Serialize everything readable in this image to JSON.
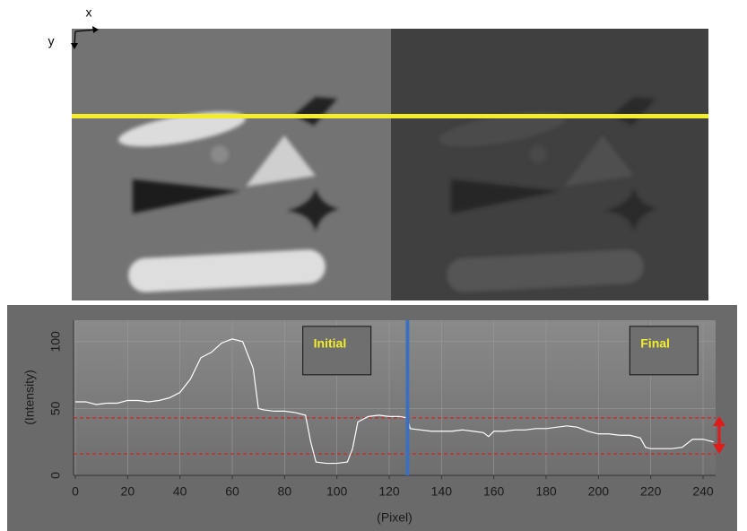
{
  "image": {
    "x_label": "x",
    "y_label": "y"
  },
  "chart_data": {
    "type": "line",
    "x_label": "(Pixel)",
    "y_label": "(Intensity)",
    "x": [
      0,
      4,
      8,
      12,
      16,
      20,
      24,
      28,
      32,
      36,
      40,
      44,
      48,
      52,
      56,
      60,
      64,
      68,
      70,
      72,
      76,
      80,
      84,
      88,
      90,
      92,
      96,
      100,
      104,
      106,
      108,
      112,
      116,
      120,
      124,
      127,
      128,
      132,
      136,
      140,
      144,
      148,
      152,
      156,
      158,
      160,
      164,
      168,
      172,
      176,
      180,
      184,
      188,
      192,
      196,
      200,
      204,
      208,
      212,
      216,
      218,
      220,
      224,
      228,
      232,
      236,
      240,
      244
    ],
    "values": [
      55,
      55,
      53,
      54,
      54,
      56,
      56,
      55,
      56,
      58,
      62,
      72,
      88,
      92,
      99,
      102,
      100,
      80,
      50,
      49,
      48,
      48,
      47,
      45,
      25,
      10,
      9,
      9,
      10,
      20,
      40,
      44,
      45,
      44,
      44,
      43,
      35,
      34,
      33,
      33,
      33,
      34,
      33,
      32,
      29,
      33,
      33,
      34,
      34,
      35,
      35,
      36,
      37,
      36,
      33,
      31,
      31,
      30,
      30,
      28,
      21,
      20,
      20,
      20,
      21,
      27,
      27,
      25
    ],
    "color": "#ffffff",
    "xlim": [
      0,
      245
    ],
    "ylim": [
      0,
      116
    ],
    "xticks": [
      0,
      20,
      40,
      60,
      80,
      100,
      120,
      140,
      160,
      180,
      200,
      220,
      240
    ],
    "yticks": [
      0,
      50,
      100
    ],
    "grid": true,
    "hlines": [
      43,
      16
    ],
    "hline_color": "#d42020",
    "vline": 127,
    "vline_color": "#3d6fc0",
    "annotations": [
      {
        "text": "Initial",
        "x": 100,
        "y": 98
      },
      {
        "text": "Final",
        "x": 225,
        "y": 98
      }
    ]
  }
}
